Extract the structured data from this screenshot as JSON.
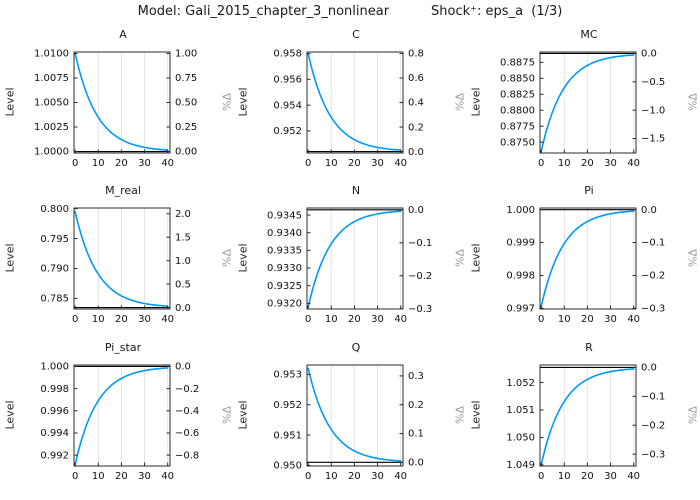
{
  "header": {
    "model_label": "Model: Gali_2015_chapter_3_nonlinear",
    "shock_label": "Shock⁺: eps_a  (1/3)"
  },
  "colors": {
    "line": "#009AFA",
    "steady_state": "#000000",
    "grid": "#E5E5E5",
    "frame": "#2B2B2B",
    "tick_text": "#111111",
    "right_label": "#9A9A9A"
  },
  "x_periods": [
    0,
    1,
    2,
    3,
    4,
    5,
    6,
    7,
    8,
    9,
    10,
    11,
    12,
    13,
    14,
    15,
    16,
    17,
    18,
    19,
    20,
    21,
    22,
    23,
    24,
    25,
    26,
    27,
    28,
    29,
    30,
    31,
    32,
    33,
    34,
    35,
    36,
    37,
    38,
    39,
    40
  ],
  "chart_data": [
    {
      "type": "line",
      "title": "A",
      "ylabel_left": "Level",
      "ylabel_right": "%Δ",
      "xlim": [
        -0.5,
        41
      ],
      "ylim": [
        0.99985,
        1.01015
      ],
      "xticks": [
        "0",
        "10",
        "20",
        "30",
        "40"
      ],
      "grid_x": [
        10,
        20,
        30,
        40
      ],
      "left_ticks": [
        "1.0000",
        "1.0025",
        "1.0050",
        "1.0075",
        "1.0100"
      ],
      "right_ticks": [
        {
          "label": "0.00",
          "pct": 0
        },
        {
          "label": "0.25",
          "pct": 0.25
        },
        {
          "label": "0.50",
          "pct": 0.5
        },
        {
          "label": "0.75",
          "pct": 0.75
        },
        {
          "label": "1.00",
          "pct": 1
        }
      ],
      "steady_state": 1.0,
      "values": [
        1.01,
        1.009,
        1.0081,
        1.00729,
        1.006561,
        1.005905,
        1.005314,
        1.004783,
        1.004305,
        1.003874,
        1.003487,
        1.003138,
        1.002824,
        1.002542,
        1.002288,
        1.002059,
        1.001853,
        1.001668,
        1.001501,
        1.001351,
        1.001216,
        1.001094,
        1.000985,
        1.000886,
        1.000798,
        1.000718,
        1.000646,
        1.000581,
        1.000523,
        1.000471,
        1.000424,
        1.000382,
        1.000343,
        1.000309,
        1.000278,
        1.00025,
        1.000225,
        1.000203,
        1.000182,
        1.000164,
        1.000148
      ]
    },
    {
      "type": "line",
      "title": "C",
      "ylabel_left": "Level",
      "ylabel_right": "%Δ",
      "xlim": [
        -0.5,
        41
      ],
      "ylim": [
        0.95029,
        0.95812
      ],
      "xticks": [
        "0",
        "10",
        "20",
        "30",
        "40"
      ],
      "grid_x": [
        10,
        20,
        30,
        40
      ],
      "left_ticks": [
        "0.952",
        "0.954",
        "0.956",
        "0.958"
      ],
      "right_ticks": [
        {
          "label": "0.0",
          "pct": 0
        },
        {
          "label": "0.2",
          "pct": 0.2
        },
        {
          "label": "0.4",
          "pct": 0.4
        },
        {
          "label": "0.6",
          "pct": 0.6
        },
        {
          "label": "0.8",
          "pct": 0.8
        }
      ],
      "steady_state": 0.9504,
      "values": [
        0.958,
        0.95724,
        0.956556,
        0.95594,
        0.955386,
        0.954888,
        0.954439,
        0.954035,
        0.953672,
        0.953344,
        0.95305,
        0.952785,
        0.952546,
        0.952332,
        0.952139,
        0.951965,
        0.951808,
        0.951667,
        0.951541,
        0.951427,
        0.951324,
        0.951232,
        0.951148,
        0.951074,
        0.951006,
        0.950946,
        0.950891,
        0.950842,
        0.950798,
        0.950758,
        0.950722,
        0.95069,
        0.950661,
        0.950635,
        0.950611,
        0.95059,
        0.950571,
        0.950554,
        0.950539,
        0.950525,
        0.950512
      ]
    },
    {
      "type": "line",
      "title": "MC",
      "ylabel_left": "Level",
      "ylabel_right": "%Δ",
      "xlim": [
        -0.5,
        41
      ],
      "ylim": [
        0.8733,
        0.88913
      ],
      "xticks": [
        "0",
        "10",
        "20",
        "30",
        "40"
      ],
      "grid_x": [
        10,
        20,
        30,
        40
      ],
      "left_ticks": [
        "0.8750",
        "0.8775",
        "0.8800",
        "0.8825",
        "0.8850",
        "0.8875"
      ],
      "right_ticks": [
        {
          "label": "0.0",
          "pct": 0
        },
        {
          "label": "−0.5",
          "pct": -0.5
        },
        {
          "label": "−1.0",
          "pct": -1
        },
        {
          "label": "−1.5",
          "pct": -1.5
        }
      ],
      "steady_state": 0.8889,
      "values": [
        0.87353,
        0.875067,
        0.87645,
        0.877695,
        0.878816,
        0.879824,
        0.880732,
        0.881549,
        0.882284,
        0.882945,
        0.883541,
        0.884077,
        0.884559,
        0.884993,
        0.885384,
        0.885735,
        0.886052,
        0.886337,
        0.886593,
        0.886824,
        0.887031,
        0.887218,
        0.887386,
        0.887538,
        0.887674,
        0.887797,
        0.887907,
        0.888006,
        0.888096,
        0.888176,
        0.888248,
        0.888314,
        0.888372,
        0.888425,
        0.888473,
        0.888515,
        0.888554,
        0.888588,
        0.88862,
        0.888648,
        0.888673
      ]
    },
    {
      "type": "line",
      "title": "M_real",
      "ylabel_left": "Level",
      "ylabel_right": "%Δ",
      "xlim": [
        -0.5,
        41
      ],
      "ylim": [
        0.78323,
        0.80011
      ],
      "xticks": [
        "0",
        "10",
        "20",
        "30",
        "40"
      ],
      "grid_x": [
        10,
        20,
        30,
        40
      ],
      "left_ticks": [
        "0.785",
        "0.790",
        "0.795",
        "0.800"
      ],
      "right_ticks": [
        {
          "label": "0.0",
          "pct": 0
        },
        {
          "label": "0.5",
          "pct": 0.5
        },
        {
          "label": "1.0",
          "pct": 1
        },
        {
          "label": "1.5",
          "pct": 1.5
        },
        {
          "label": "2.0",
          "pct": 2
        }
      ],
      "steady_state": 0.78347,
      "values": [
        0.79947,
        0.79787,
        0.79643,
        0.795134,
        0.793968,
        0.792918,
        0.791974,
        0.791123,
        0.790357,
        0.789669,
        0.789049,
        0.788491,
        0.787989,
        0.787537,
        0.78713,
        0.786764,
        0.786435,
        0.786138,
        0.785872,
        0.785631,
        0.785415,
        0.785221,
        0.785046,
        0.784888,
        0.784746,
        0.784619,
        0.784504,
        0.7844,
        0.784307,
        0.784224,
        0.784148,
        0.78408,
        0.784019,
        0.783964,
        0.783915,
        0.78387,
        0.78383,
        0.783794,
        0.783762,
        0.783733,
        0.783706
      ]
    },
    {
      "type": "line",
      "title": "N",
      "ylabel_left": "Level",
      "ylabel_right": "%Δ",
      "xlim": [
        -0.5,
        41
      ],
      "ylim": [
        0.93184,
        0.9347
      ],
      "xticks": [
        "0",
        "10",
        "20",
        "30",
        "40"
      ],
      "grid_x": [
        10,
        20,
        30,
        40
      ],
      "left_ticks": [
        "0.9320",
        "0.9325",
        "0.9330",
        "0.9335",
        "0.9340",
        "0.9345"
      ],
      "right_ticks": [
        {
          "label": "0.0",
          "pct": 0
        },
        {
          "label": "−0.1",
          "pct": -0.1
        },
        {
          "label": "−0.2",
          "pct": -0.2
        },
        {
          "label": "−0.3",
          "pct": -0.3
        }
      ],
      "steady_state": 0.93465,
      "values": [
        0.93189,
        0.932166,
        0.932414,
        0.932638,
        0.932839,
        0.93302,
        0.933183,
        0.93333,
        0.933462,
        0.933581,
        0.933688,
        0.933784,
        0.93387,
        0.933948,
        0.934019,
        0.934082,
        0.934139,
        0.93419,
        0.934236,
        0.934277,
        0.934314,
        0.934348,
        0.934378,
        0.934405,
        0.93443,
        0.934452,
        0.934472,
        0.93449,
        0.934506,
        0.93452,
        0.934533,
        0.934545,
        0.934555,
        0.934565,
        0.934573,
        0.934581,
        0.934588,
        0.934594,
        0.9346,
        0.934605,
        0.934609
      ]
    },
    {
      "type": "line",
      "title": "Pi",
      "ylabel_left": "Level",
      "ylabel_right": "%Δ",
      "xlim": [
        -0.5,
        41
      ],
      "ylim": [
        0.99698,
        1.00005
      ],
      "xticks": [
        "0",
        "10",
        "20",
        "30",
        "40"
      ],
      "grid_x": [
        10,
        20,
        30,
        40
      ],
      "left_ticks": [
        "0.997",
        "0.998",
        "0.999",
        "1.000"
      ],
      "right_ticks": [
        {
          "label": "0.0",
          "pct": 0
        },
        {
          "label": "−0.1",
          "pct": -0.1
        },
        {
          "label": "−0.2",
          "pct": -0.2
        },
        {
          "label": "−0.3",
          "pct": -0.3
        }
      ],
      "steady_state": 1.0,
      "values": [
        0.99705,
        0.997345,
        0.997611,
        0.997849,
        0.998065,
        0.998258,
        0.998432,
        0.998589,
        0.99873,
        0.998857,
        0.998971,
        0.999074,
        0.999167,
        0.99925,
        0.999325,
        0.999393,
        0.999453,
        0.999508,
        0.999557,
        0.999601,
        0.999641,
        0.999677,
        0.999709,
        0.999739,
        0.999765,
        0.999788,
        0.999809,
        0.999828,
        0.999846,
        0.999861,
        0.999875,
        0.999887,
        0.999899,
        0.999909,
        0.999918,
        0.999926,
        0.999934,
        0.99994,
        0.999946,
        0.999952,
        0.999956
      ]
    },
    {
      "type": "line",
      "title": "Pi_star",
      "ylabel_left": "Level",
      "ylabel_right": "%Δ",
      "xlim": [
        -0.5,
        41
      ],
      "ylim": [
        0.99102,
        1.00013
      ],
      "xticks": [
        "0",
        "10",
        "20",
        "30",
        "40"
      ],
      "grid_x": [
        10,
        20,
        30,
        40
      ],
      "left_ticks": [
        "0.992",
        "0.994",
        "0.996",
        "0.998",
        "1.000"
      ],
      "right_ticks": [
        {
          "label": "0.0",
          "pct": 0
        },
        {
          "label": "−0.2",
          "pct": -0.2
        },
        {
          "label": "−0.4",
          "pct": -0.4
        },
        {
          "label": "−0.6",
          "pct": -0.6
        },
        {
          "label": "−0.8",
          "pct": -0.8
        }
      ],
      "steady_state": 1.0,
      "values": [
        0.99115,
        0.992035,
        0.992832,
        0.993548,
        0.994194,
        0.994774,
        0.995297,
        0.995767,
        0.99619,
        0.996571,
        0.996914,
        0.997223,
        0.9975,
        0.99775,
        0.997975,
        0.998178,
        0.99836,
        0.998524,
        0.998672,
        0.998804,
        0.998924,
        0.999032,
        0.999128,
        0.999216,
        0.999294,
        0.999365,
        0.999428,
        0.999485,
        0.999537,
        0.999583,
        0.999625,
        0.999662,
        0.999696,
        0.999727,
        0.999754,
        0.999778,
        0.999801,
        0.999821,
        0.999839,
        0.999855,
        0.999869
      ]
    },
    {
      "type": "line",
      "title": "Q",
      "ylabel_left": "Level",
      "ylabel_right": "%Δ",
      "xlim": [
        -0.5,
        41
      ],
      "ylim": [
        0.94998,
        0.95331
      ],
      "xticks": [
        "0",
        "10",
        "20",
        "30",
        "40"
      ],
      "grid_x": [
        10,
        20,
        30,
        40
      ],
      "left_ticks": [
        "0.950",
        "0.951",
        "0.952",
        "0.953"
      ],
      "right_ticks": [
        {
          "label": "0.0",
          "pct": 0
        },
        {
          "label": "0.1",
          "pct": 0.1
        },
        {
          "label": "0.2",
          "pct": 0.2
        },
        {
          "label": "0.3",
          "pct": 0.3
        }
      ],
      "steady_state": 0.9501,
      "values": [
        0.9532,
        0.95289,
        0.952611,
        0.95236,
        0.952134,
        0.951931,
        0.951747,
        0.951583,
        0.951434,
        0.951301,
        0.951181,
        0.951073,
        0.950976,
        0.950888,
        0.950809,
        0.950738,
        0.950674,
        0.950617,
        0.950565,
        0.950519,
        0.950477,
        0.950439,
        0.950405,
        0.950375,
        0.950347,
        0.950323,
        0.9503,
        0.95028,
        0.950262,
        0.950246,
        0.950231,
        0.950218,
        0.950206,
        0.950196,
        0.950186,
        0.950178,
        0.95017,
        0.950163,
        0.950157,
        0.950151,
        0.950146
      ]
    },
    {
      "type": "line",
      "title": "R",
      "ylabel_left": "Level",
      "ylabel_right": "%Δ",
      "xlim": [
        -0.5,
        41
      ],
      "ylim": [
        1.04896,
        1.05264
      ],
      "xticks": [
        "0",
        "10",
        "20",
        "30",
        "40"
      ],
      "grid_x": [
        10,
        20,
        30,
        40
      ],
      "left_ticks": [
        "1.049",
        "1.050",
        "1.051",
        "1.052"
      ],
      "right_ticks": [
        {
          "label": "0.0",
          "pct": 0
        },
        {
          "label": "−0.1",
          "pct": -0.1
        },
        {
          "label": "−0.2",
          "pct": -0.2
        },
        {
          "label": "−0.3",
          "pct": -0.3
        }
      ],
      "steady_state": 1.05255,
      "values": [
        1.049,
        1.049355,
        1.049675,
        1.049962,
        1.050221,
        1.050454,
        1.050663,
        1.050852,
        1.051022,
        1.051175,
        1.051312,
        1.051436,
        1.051547,
        1.051648,
        1.051738,
        1.051819,
        1.051892,
        1.051958,
        1.052017,
        1.05207,
        1.052118,
        1.052162,
        1.0522,
        1.052235,
        1.052267,
        1.052295,
        1.052321,
        1.052344,
        1.052364,
        1.052383,
        1.052399,
        1.052414,
        1.052428,
        1.05244,
        1.052451,
        1.052461,
        1.05247,
        1.052478,
        1.052485,
        1.052492,
        1.052497
      ]
    }
  ]
}
